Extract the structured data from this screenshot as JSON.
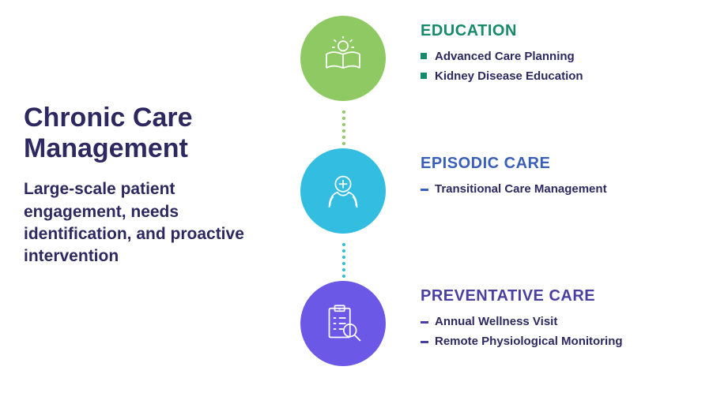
{
  "colors": {
    "text_primary": "#2d2960",
    "node1_circle": "#8fc963",
    "node1_heading": "#178a6b",
    "node2_circle": "#33bde0",
    "node2_heading": "#3a5fb8",
    "node3_circle": "#6b58e6",
    "node3_heading": "#4a3fa0",
    "connector1": "#8fc963",
    "connector2": "#33bde0",
    "icon_stroke": "#ffffff"
  },
  "layout": {
    "circle_diameter": 108,
    "connector_top1": 120,
    "connector_height1": 60,
    "connector_top2": 288,
    "connector_height2": 60
  },
  "left": {
    "headline": "Chronic Care Management",
    "subhead": "Large-scale patient engagement, needs identification, and proactive intervention"
  },
  "nodes": [
    {
      "icon": "book-bulb-icon",
      "heading": "EDUCATION",
      "bullet_style": "square",
      "items": [
        "Advanced Care Planning",
        "Kidney Disease Education"
      ]
    },
    {
      "icon": "hands-cross-icon",
      "heading": "EPISODIC CARE",
      "bullet_style": "dash",
      "items": [
        "Transitional Care Management"
      ]
    },
    {
      "icon": "clipboard-search-icon",
      "heading": "PREVENTATIVE CARE",
      "bullet_style": "dash",
      "items": [
        "Annual Wellness Visit",
        "Remote Physiological Monitoring"
      ]
    }
  ]
}
